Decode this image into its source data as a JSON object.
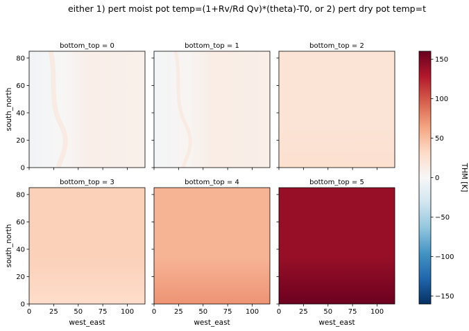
{
  "chart_data": {
    "type": "heatmap",
    "title": "either 1) pert moist pot temp=(1+Rv/Rd Qv)*(theta)-T0, or 2) pert dry pot temp=t",
    "xlabel": "west_east",
    "ylabel": "south_north",
    "xlim": [
      0,
      118
    ],
    "ylim": [
      0,
      85
    ],
    "x_ticks": [
      0,
      25,
      50,
      75,
      100
    ],
    "y_ticks": [
      0,
      20,
      40,
      60,
      80
    ],
    "colormap": "RdBu_r",
    "colorbar": {
      "label": "THM [K]",
      "range": [
        -160,
        160
      ],
      "ticks": [
        -150,
        -100,
        -50,
        0,
        50,
        100,
        150
      ]
    },
    "panels": [
      {
        "title": "bottom_top = 0",
        "level": 0,
        "approx_value_K": 8,
        "approx_range_K": [
          -6,
          18
        ],
        "pattern": "west slightly negative (bluish), east slightly positive, ridge along x≈25–30"
      },
      {
        "title": "bottom_top = 1",
        "level": 1,
        "approx_value_K": 10,
        "approx_range_K": [
          -3,
          18
        ],
        "pattern": "similar to level 0 but weaker contrast"
      },
      {
        "title": "bottom_top = 2",
        "level": 2,
        "approx_value_K": 22,
        "approx_range_K": [
          18,
          26
        ],
        "pattern": "nearly uniform"
      },
      {
        "title": "bottom_top = 3",
        "level": 3,
        "approx_value_K": 38,
        "approx_range_K": [
          30,
          45
        ],
        "pattern": "slightly lighter toward south"
      },
      {
        "title": "bottom_top = 4",
        "level": 4,
        "approx_value_K": 55,
        "approx_range_K": [
          45,
          72
        ],
        "pattern": "stronger at bottom corners"
      },
      {
        "title": "bottom_top = 5",
        "level": 5,
        "approx_value_K": 140,
        "approx_range_K": [
          130,
          158
        ],
        "pattern": "near-uniform high values, darkest at bottom"
      }
    ]
  }
}
